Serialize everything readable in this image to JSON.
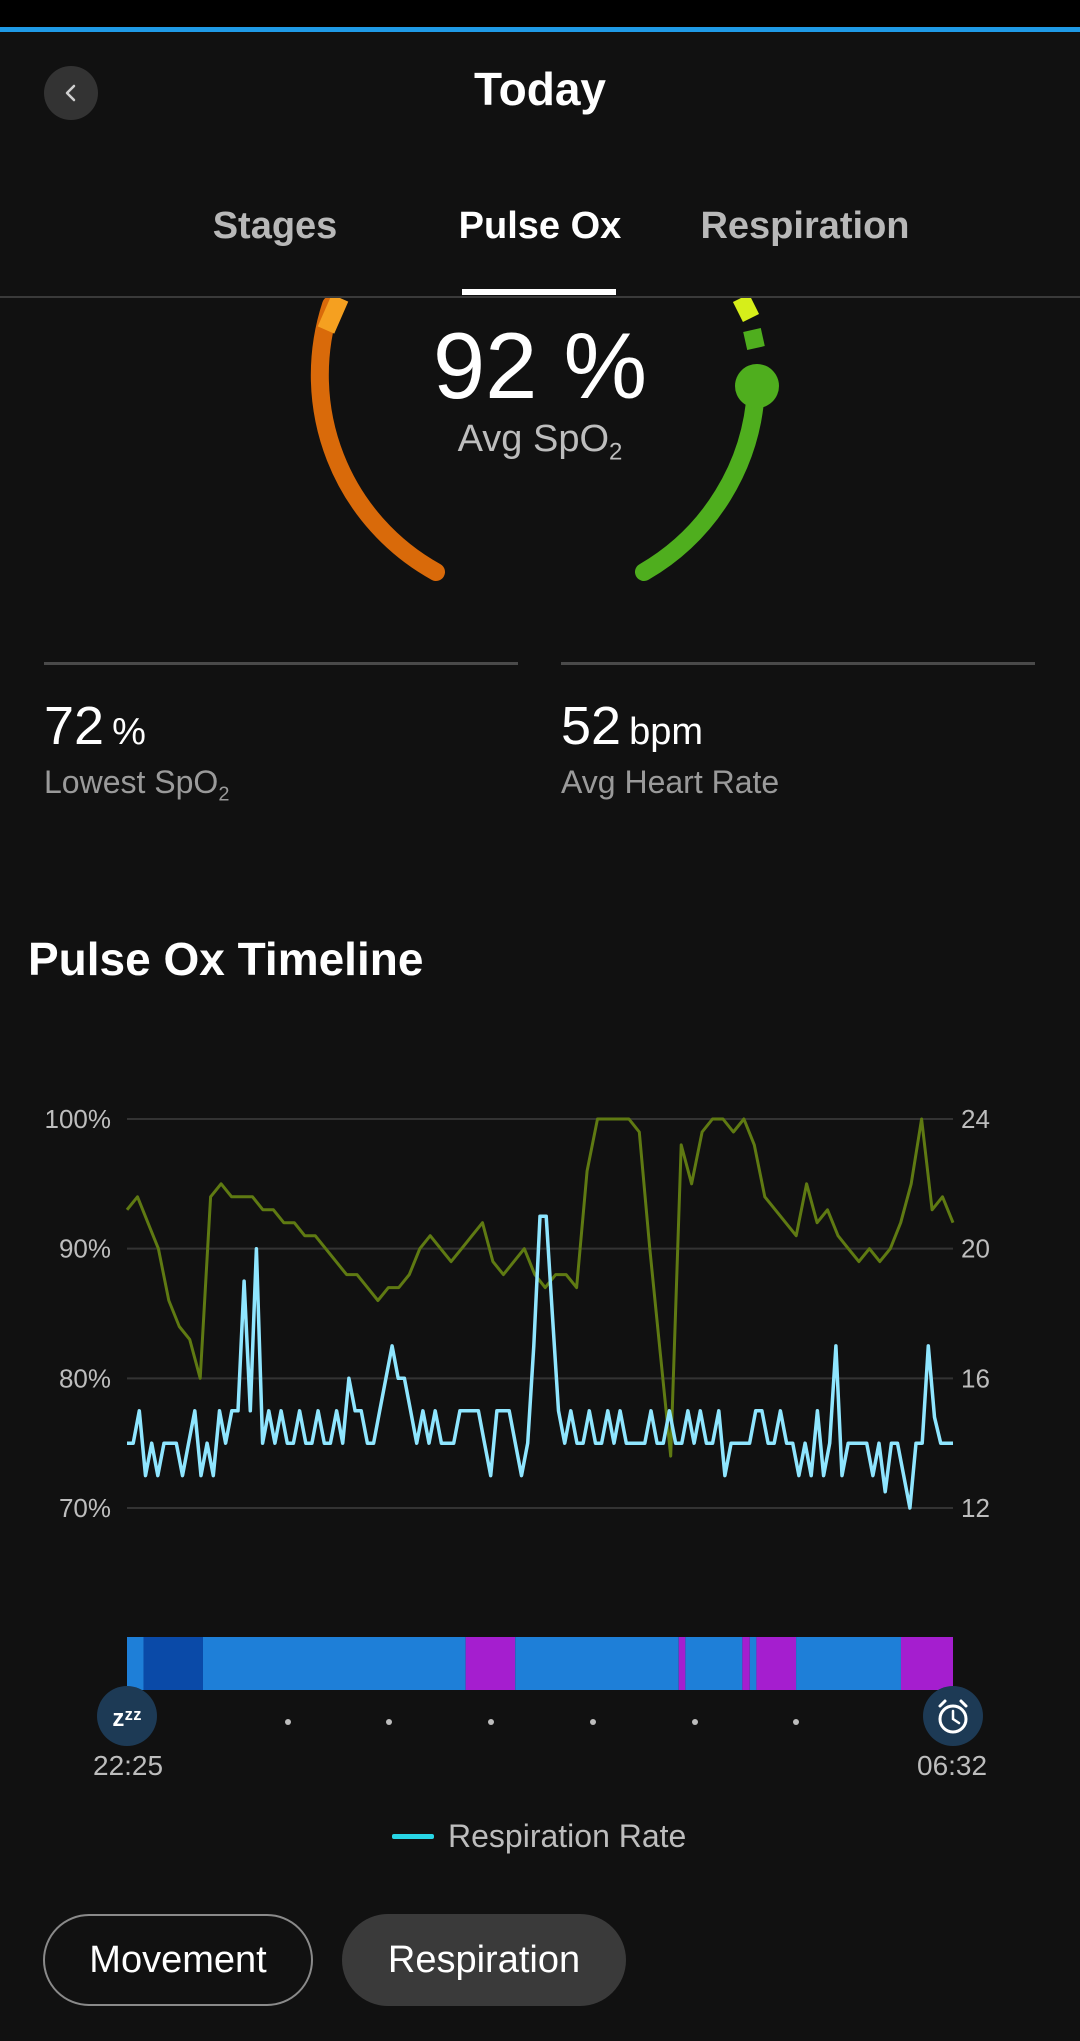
{
  "header": {
    "title": "Today",
    "back_icon": "chevron-left-icon"
  },
  "tabs": [
    {
      "label": "Stages",
      "active": false
    },
    {
      "label": "Pulse Ox",
      "active": true
    },
    {
      "label": "Respiration",
      "active": false
    }
  ],
  "gauge": {
    "value": "92 %",
    "label": "Avg SpO",
    "label_sub": "2",
    "colors": {
      "low": "#d96a0a",
      "low_accent": "#f5a020",
      "high": "#4fae1e",
      "high_accent": "#d6ee1a"
    }
  },
  "stats": {
    "lowest": {
      "value": "72",
      "unit": "%",
      "label": "Lowest SpO",
      "label_sub": "2"
    },
    "heart_rate": {
      "value": "52",
      "unit": "bpm",
      "label": "Avg Heart Rate"
    }
  },
  "timeline": {
    "title": "Pulse Ox Timeline",
    "start_time": "22:25",
    "end_time": "06:32",
    "start_icon": "sleep-zzz-icon",
    "end_icon": "alarm-clock-icon",
    "legend": "Respiration Rate"
  },
  "chart_data": {
    "type": "line",
    "left_axis": {
      "ticks": [
        "100%",
        "90%",
        "80%",
        "70%"
      ],
      "range": [
        70,
        100
      ]
    },
    "right_axis": {
      "ticks": [
        "24",
        "20",
        "16",
        "12"
      ],
      "range": [
        12,
        24
      ]
    },
    "grid": true,
    "series": [
      {
        "name": "Respiration Rate",
        "axis": "right",
        "color": "#8fe6ff",
        "values": [
          14,
          14,
          15,
          13,
          14,
          13,
          14,
          14,
          14,
          13,
          14,
          15,
          13,
          14,
          13,
          15,
          14,
          15,
          15,
          19,
          15,
          20,
          14,
          15,
          14,
          15,
          14,
          14,
          15,
          14,
          14,
          15,
          14,
          14,
          15,
          14,
          16,
          15,
          15,
          14,
          14,
          15,
          16,
          17,
          16,
          16,
          15,
          14,
          15,
          14,
          15,
          14,
          14,
          14,
          15,
          15,
          15,
          15,
          14,
          13,
          15,
          15,
          15,
          14,
          13,
          14,
          17,
          21,
          21,
          18,
          15,
          14,
          15,
          14,
          14,
          15,
          14,
          14,
          15,
          14,
          15,
          14,
          14,
          14,
          14,
          15,
          14,
          14,
          15,
          14,
          14,
          15,
          14,
          15,
          14,
          14,
          15,
          13,
          14,
          14,
          14,
          14,
          15,
          15,
          14,
          14,
          15,
          14,
          14,
          13,
          14,
          13,
          15,
          13,
          14,
          17,
          13,
          14,
          14,
          14,
          14,
          13,
          14,
          12.5,
          14,
          14,
          13,
          12,
          14,
          14,
          17,
          14.8,
          14,
          14,
          14
        ]
      },
      {
        "name": "",
        "axis": "left",
        "color": "#5f7a12",
        "values": [
          93,
          94,
          92,
          90,
          86,
          84,
          83,
          80,
          94,
          95,
          94,
          94,
          94,
          93,
          93,
          92,
          92,
          91,
          91,
          90,
          89,
          88,
          88,
          87,
          86,
          87,
          87,
          88,
          90,
          91,
          90,
          89,
          90,
          91,
          92,
          89,
          88,
          89,
          90,
          88,
          87,
          88,
          88,
          87,
          96,
          100,
          100,
          100,
          100,
          99,
          90,
          82,
          74,
          98,
          95,
          99,
          100,
          100,
          99,
          100,
          98,
          94,
          93,
          92,
          91,
          95,
          92,
          93,
          91,
          90,
          89,
          90,
          89,
          90,
          92,
          95,
          100,
          93,
          94,
          92
        ]
      }
    ],
    "sleep_stages_bar": {
      "colors": {
        "deep": "#0a4aa8",
        "light": "#1e7fd8",
        "rem": "#a51ecf"
      },
      "segments": [
        {
          "stage": "light",
          "start": 0,
          "end": 0.02
        },
        {
          "stage": "deep",
          "start": 0.02,
          "end": 0.092
        },
        {
          "stage": "light",
          "start": 0.092,
          "end": 0.41
        },
        {
          "stage": "rem",
          "start": 0.41,
          "end": 0.47
        },
        {
          "stage": "light",
          "start": 0.47,
          "end": 0.668
        },
        {
          "stage": "rem",
          "start": 0.668,
          "end": 0.676
        },
        {
          "stage": "light",
          "start": 0.676,
          "end": 0.745
        },
        {
          "stage": "rem",
          "start": 0.745,
          "end": 0.754
        },
        {
          "stage": "light",
          "start": 0.754,
          "end": 0.762
        },
        {
          "stage": "rem",
          "start": 0.762,
          "end": 0.81
        },
        {
          "stage": "light",
          "start": 0.81,
          "end": 0.937
        },
        {
          "stage": "rem",
          "start": 0.937,
          "end": 1.0
        }
      ]
    }
  },
  "buttons": {
    "movement": "Movement",
    "respiration": "Respiration"
  }
}
